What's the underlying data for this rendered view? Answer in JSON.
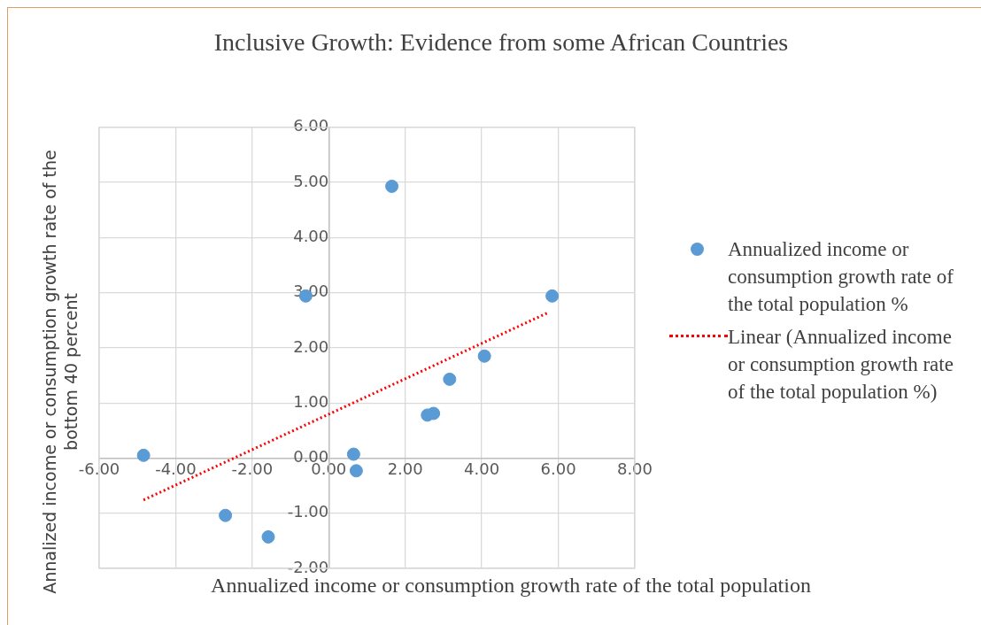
{
  "chart_data": {
    "type": "scatter",
    "title": "Inclusive Growth: Evidence from some African Countries",
    "xlabel": "Annualized income or consumption growth rate of the total population",
    "ylabel": "Annalized income or consumption growth rate of the bottom 40 percent",
    "xlim": [
      -6,
      8
    ],
    "xticks": [
      {
        "value": -6,
        "label": "-6.00"
      },
      {
        "value": -4,
        "label": "-4.00"
      },
      {
        "value": -2,
        "label": "-2.00"
      },
      {
        "value": 0,
        "label": "0.00"
      },
      {
        "value": 2,
        "label": "2.00"
      },
      {
        "value": 4,
        "label": "4.00"
      },
      {
        "value": 6,
        "label": "6.00"
      },
      {
        "value": 8,
        "label": "8.00"
      }
    ],
    "ylim": [
      -2,
      6
    ],
    "yticks": [
      {
        "value": -2,
        "label": "-2.00"
      },
      {
        "value": -1,
        "label": "-1.00"
      },
      {
        "value": 0,
        "label": "0.00"
      },
      {
        "value": 1,
        "label": "1.00"
      },
      {
        "value": 2,
        "label": "2.00"
      },
      {
        "value": 3,
        "label": "3.00"
      },
      {
        "value": 4,
        "label": "4.00"
      },
      {
        "value": 5,
        "label": "5.00"
      },
      {
        "value": 6,
        "label": "6.00"
      }
    ],
    "grid": true,
    "legend": "right",
    "marker": "circle",
    "series": [
      {
        "name": "Annualized income or consumption growth rate of the total population %",
        "color": "#5b9bd5",
        "x": [
          -4.84,
          -2.7,
          -1.58,
          -0.6,
          1.65,
          0.65,
          0.72,
          2.58,
          2.74,
          3.16,
          4.07,
          5.84
        ],
        "values": [
          0.05,
          -1.04,
          -1.43,
          2.94,
          4.93,
          0.07,
          -0.23,
          0.78,
          0.81,
          1.43,
          1.85,
          2.94
        ]
      },
      {
        "name": "Linear (Annualized income or consumption growth rate of the total population %)",
        "type": "line",
        "color": "#ff0000",
        "line_style": "dotted",
        "marker": "none",
        "x": [
          -4.84,
          5.74
        ],
        "values": [
          -0.76,
          2.64
        ]
      }
    ]
  }
}
